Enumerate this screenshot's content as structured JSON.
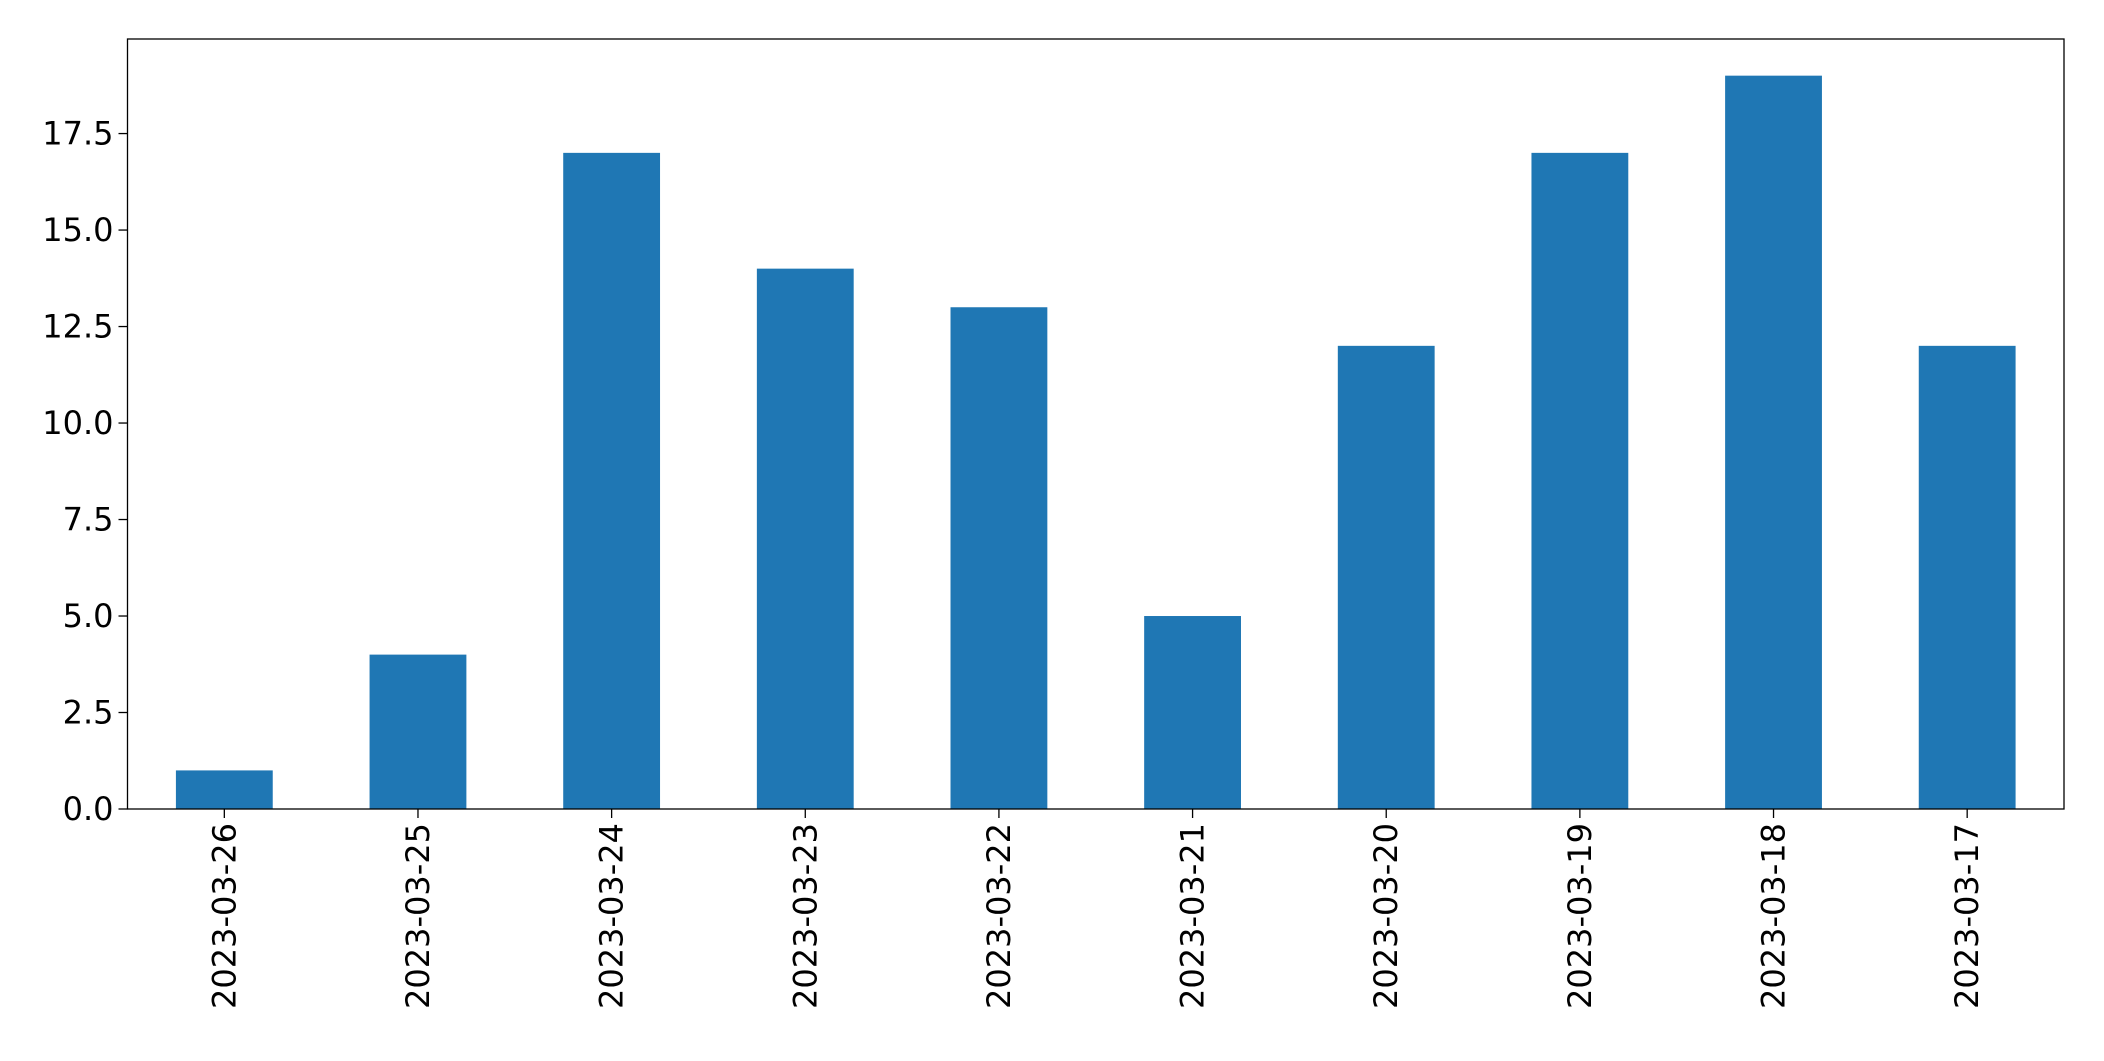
{
  "chart_data": {
    "type": "bar",
    "categories": [
      "2023-03-26",
      "2023-03-25",
      "2023-03-24",
      "2023-03-23",
      "2023-03-22",
      "2023-03-21",
      "2023-03-20",
      "2023-03-19",
      "2023-03-18",
      "2023-03-17"
    ],
    "values": [
      1,
      4,
      17,
      14,
      13,
      5,
      12,
      17,
      19,
      12
    ],
    "color": "#1f77b4",
    "ylim": [
      0,
      19.95
    ],
    "yticks": [
      {
        "value": 0,
        "label": "0.0"
      },
      2.5,
      {
        "value": 5,
        "label": "5.0"
      },
      7.5,
      {
        "value": 10,
        "label": "10.0"
      },
      12.5,
      {
        "value": 15,
        "label": "15.0"
      },
      17.5
    ],
    "grid": false
  }
}
